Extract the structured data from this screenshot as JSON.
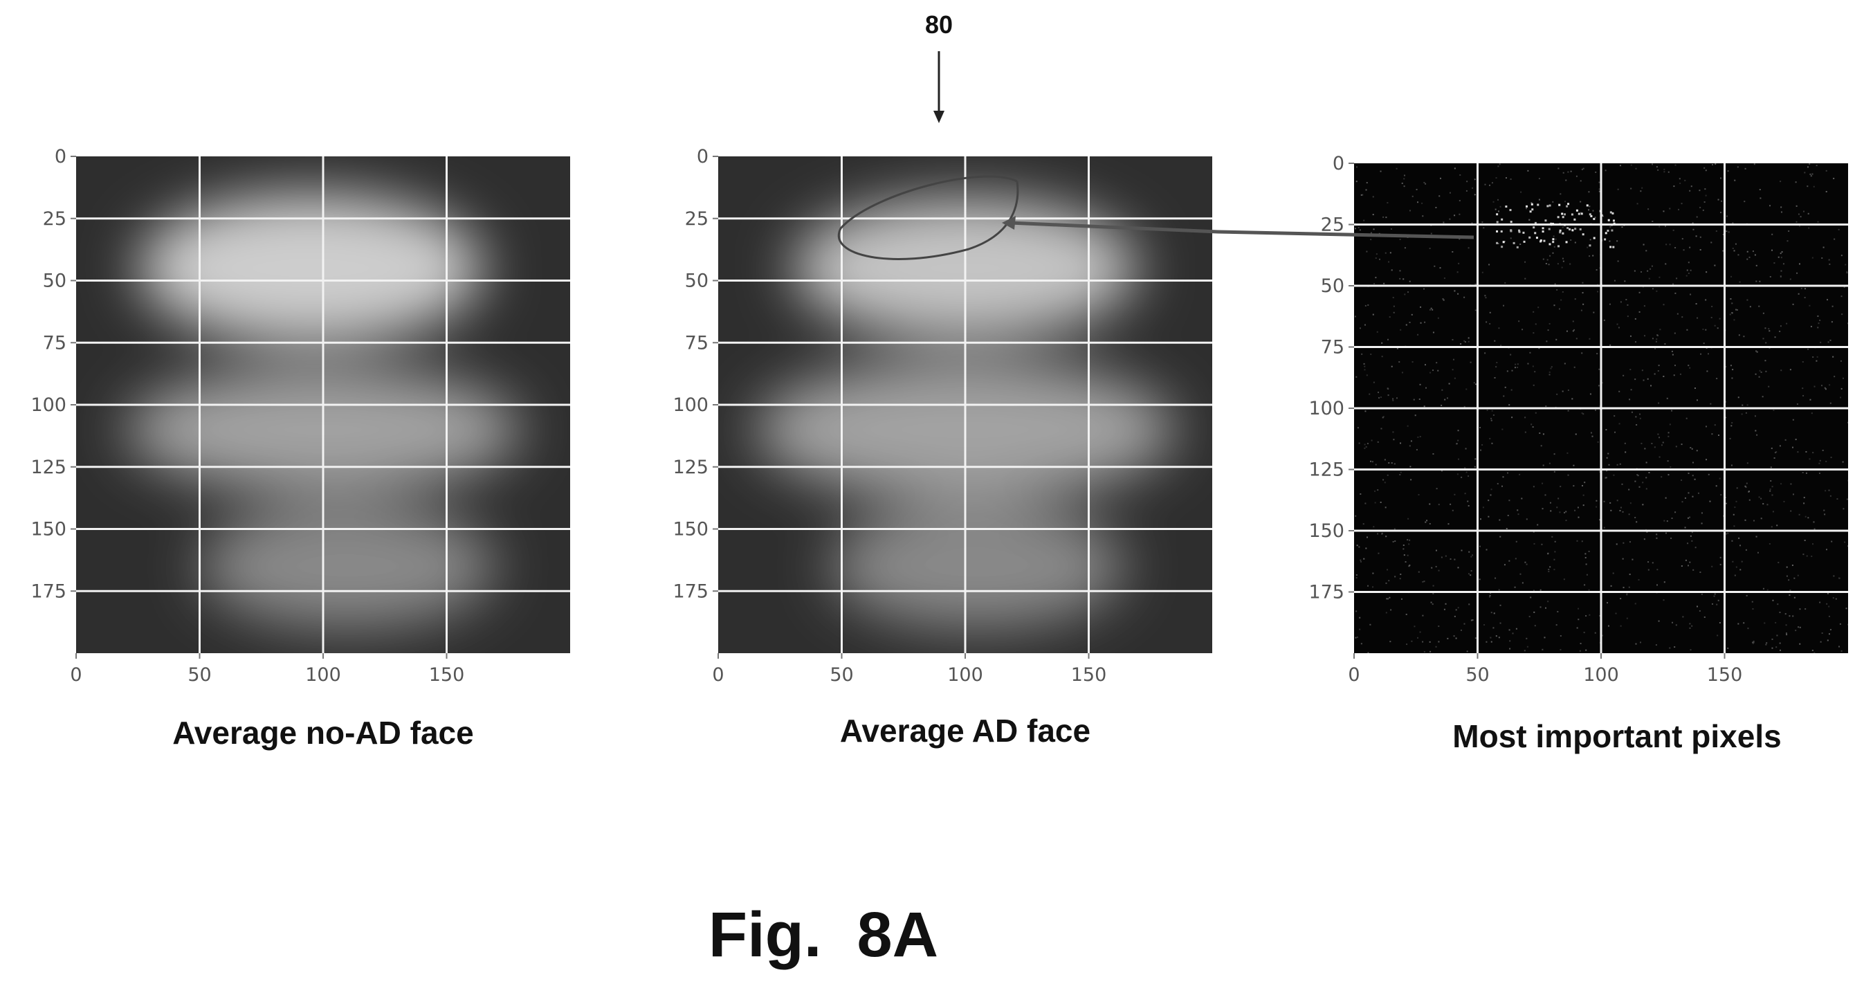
{
  "reference_numeral": "80",
  "figure_label": "Fig.  8A",
  "chart_data": [
    {
      "type": "heatmap",
      "title": "Average no-AD face",
      "x_ticks": [
        0,
        50,
        100,
        150
      ],
      "y_ticks": [
        0,
        25,
        50,
        75,
        100,
        125,
        150,
        175
      ],
      "xlim": [
        0,
        200
      ],
      "ylim": [
        200,
        0
      ],
      "grid": true,
      "colormap": "grayscale",
      "bright_regions": [
        {
          "cx": 95,
          "cy": 45,
          "rx": 70,
          "ry": 30,
          "intensity": 0.85
        },
        {
          "cx": 100,
          "cy": 110,
          "rx": 80,
          "ry": 25,
          "intensity": 0.6
        },
        {
          "cx": 110,
          "cy": 165,
          "rx": 60,
          "ry": 25,
          "intensity": 0.45
        }
      ]
    },
    {
      "type": "heatmap",
      "title": "Average AD face",
      "x_ticks": [
        0,
        50,
        100,
        150
      ],
      "y_ticks": [
        0,
        25,
        50,
        75,
        100,
        125,
        150,
        175
      ],
      "xlim": [
        0,
        200
      ],
      "ylim": [
        200,
        0
      ],
      "grid": true,
      "colormap": "grayscale",
      "bright_regions": [
        {
          "cx": 100,
          "cy": 45,
          "rx": 70,
          "ry": 28,
          "intensity": 0.8
        },
        {
          "cx": 100,
          "cy": 110,
          "rx": 85,
          "ry": 28,
          "intensity": 0.6
        },
        {
          "cx": 105,
          "cy": 165,
          "rx": 60,
          "ry": 25,
          "intensity": 0.45
        }
      ]
    },
    {
      "type": "heatmap",
      "title": "Most important pixels",
      "x_ticks": [
        0,
        50,
        100,
        150
      ],
      "y_ticks": [
        0,
        25,
        50,
        75,
        100,
        125,
        150,
        175
      ],
      "xlim": [
        0,
        200
      ],
      "ylim": [
        200,
        0
      ],
      "grid": true,
      "colormap": "grayscale",
      "hotspot": {
        "cx": 80,
        "cy": 25
      }
    }
  ]
}
